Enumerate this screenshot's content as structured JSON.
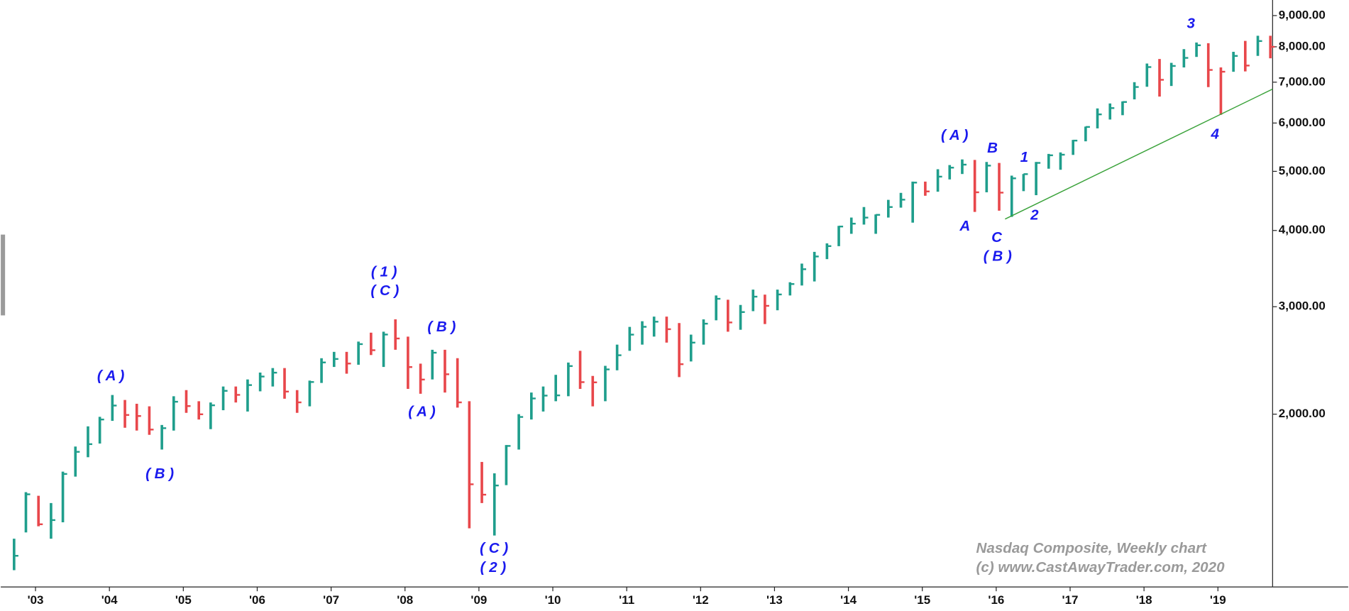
{
  "chart_data": {
    "type": "ohlc",
    "log_scale": true,
    "up_color": "#1f9e8c",
    "down_color": "#e8474b",
    "annotation_color": "#1a1aee",
    "trendline_color": "#3aa23a",
    "x": [
      2002.71,
      2002.87,
      2003.04,
      2003.21,
      2003.37,
      2003.54,
      2003.71,
      2003.87,
      2004.04,
      2004.21,
      2004.37,
      2004.54,
      2004.71,
      2004.87,
      2005.04,
      2005.21,
      2005.37,
      2005.54,
      2005.71,
      2005.87,
      2006.04,
      2006.21,
      2006.37,
      2006.54,
      2006.71,
      2006.87,
      2007.04,
      2007.21,
      2007.37,
      2007.54,
      2007.71,
      2007.87,
      2008.04,
      2008.21,
      2008.37,
      2008.54,
      2008.71,
      2008.87,
      2009.04,
      2009.21,
      2009.37,
      2009.54,
      2009.71,
      2009.87,
      2010.04,
      2010.21,
      2010.37,
      2010.54,
      2010.71,
      2010.87,
      2011.04,
      2011.21,
      2011.37,
      2011.54,
      2011.71,
      2011.87,
      2012.04,
      2012.21,
      2012.37,
      2012.54,
      2012.71,
      2012.87,
      2013.04,
      2013.21,
      2013.37,
      2013.54,
      2013.71,
      2013.87,
      2014.04,
      2014.21,
      2014.37,
      2014.54,
      2014.71,
      2014.87,
      2015.04,
      2015.21,
      2015.37,
      2015.54,
      2015.71,
      2015.87,
      2016.04,
      2016.21,
      2016.37,
      2016.54,
      2016.71,
      2016.87,
      2017.04,
      2017.21,
      2017.37,
      2017.54,
      2017.71,
      2017.87,
      2018.04,
      2018.21,
      2018.37,
      2018.54,
      2018.71,
      2018.87,
      2019.04,
      2019.21,
      2019.37,
      2019.54,
      2019.71
    ],
    "high": [
      1250,
      1490,
      1470,
      1430,
      1610,
      1770,
      1910,
      1980,
      2150,
      2110,
      2080,
      2060,
      1920,
      2140,
      2190,
      2100,
      2090,
      2220,
      2220,
      2280,
      2340,
      2380,
      2380,
      2190,
      2270,
      2470,
      2530,
      2530,
      2630,
      2720,
      2730,
      2860,
      2680,
      2420,
      2550,
      2550,
      2470,
      2100,
      1670,
      1600,
      1780,
      2000,
      2170,
      2220,
      2320,
      2430,
      2540,
      2310,
      2400,
      2600,
      2780,
      2840,
      2890,
      2890,
      2820,
      2700,
      2860,
      3130,
      3080,
      3020,
      3200,
      3140,
      3200,
      3290,
      3530,
      3690,
      3810,
      4070,
      4200,
      4370,
      4250,
      4490,
      4610,
      4810,
      4810,
      5040,
      5120,
      5230,
      5220,
      5180,
      5160,
      4920,
      4950,
      5180,
      5340,
      5370,
      5630,
      5920,
      6340,
      6460,
      6510,
      7000,
      7510,
      7640,
      7530,
      7930,
      8130,
      8110,
      7400,
      7850,
      8180,
      8340,
      8340
    ],
    "low": [
      1110,
      1280,
      1310,
      1250,
      1330,
      1580,
      1700,
      1790,
      1950,
      1900,
      1880,
      1850,
      1750,
      1880,
      2010,
      1960,
      1890,
      2030,
      2090,
      2020,
      2180,
      2220,
      2120,
      2010,
      2060,
      2250,
      2390,
      2330,
      2410,
      2500,
      2390,
      2550,
      2200,
      2160,
      2280,
      2170,
      2050,
      1300,
      1430,
      1265,
      1530,
      1750,
      1960,
      2020,
      2100,
      2140,
      2200,
      2060,
      2100,
      2360,
      2540,
      2600,
      2680,
      2620,
      2300,
      2440,
      2600,
      2850,
      2730,
      2750,
      2950,
      2810,
      2960,
      3130,
      3250,
      3300,
      3590,
      3770,
      3950,
      4090,
      3950,
      4200,
      4360,
      4120,
      4560,
      4630,
      4850,
      4950,
      4290,
      4620,
      4310,
      4210,
      4640,
      4570,
      5050,
      5030,
      5320,
      5600,
      5880,
      6080,
      6180,
      6560,
      6880,
      6630,
      6900,
      7400,
      7700,
      6870,
      6190,
      7280,
      7290,
      7730,
      7660
    ],
    "close": [
      1172,
      1478,
      1320,
      1341,
      1596,
      1735,
      1786,
      1960,
      2066,
      1994,
      1986,
      1887,
      1897,
      2096,
      2062,
      1999,
      2068,
      2184,
      2151,
      2232,
      2305,
      2339,
      2178,
      2091,
      2258,
      2431,
      2463,
      2421,
      2605,
      2546,
      2701,
      2661,
      2389,
      2279,
      2522,
      2325,
      2091,
      1535,
      1476,
      1528,
      1774,
      1979,
      2122,
      2145,
      2147,
      2398,
      2257,
      2255,
      2368,
      2498,
      2700,
      2781,
      2835,
      2756,
      2415,
      2620,
      2814,
      3091,
      2827,
      2940,
      3116,
      3010,
      3142,
      3268,
      3456,
      3626,
      3771,
      4060,
      4104,
      4199,
      4243,
      4370,
      4493,
      4792,
      4635,
      4901,
      5070,
      5128,
      4620,
      5109,
      4614,
      4870,
      4948,
      5162,
      5312,
      5324,
      5615,
      5912,
      6199,
      6348,
      6496,
      6874,
      7411,
      7063,
      7442,
      7672,
      8046,
      7331,
      7282,
      7729,
      7453,
      8175,
      7999
    ],
    "trendline": {
      "x": [
        2016.12,
        2019.74
      ],
      "values": [
        4176,
        6820
      ]
    },
    "xlim": [
      2002.53,
      2019.74
    ],
    "ylim": [
      1042,
      9545
    ],
    "xticks": [
      {
        "value": 2003,
        "label": "'03"
      },
      {
        "value": 2004,
        "label": "'04"
      },
      {
        "value": 2005,
        "label": "'05"
      },
      {
        "value": 2006,
        "label": "'06"
      },
      {
        "value": 2007,
        "label": "'07"
      },
      {
        "value": 2008,
        "label": "'08"
      },
      {
        "value": 2009,
        "label": "'09"
      },
      {
        "value": 2010,
        "label": "'10"
      },
      {
        "value": 2011,
        "label": "'11"
      },
      {
        "value": 2012,
        "label": "'12"
      },
      {
        "value": 2013,
        "label": "'13"
      },
      {
        "value": 2014,
        "label": "'14"
      },
      {
        "value": 2015,
        "label": "'15"
      },
      {
        "value": 2016,
        "label": "'16"
      },
      {
        "value": 2017,
        "label": "'17"
      },
      {
        "value": 2018,
        "label": "'18"
      },
      {
        "value": 2019,
        "label": "'19"
      }
    ],
    "yticks": [
      {
        "value": 2000,
        "label": "2,000.00"
      },
      {
        "value": 3000,
        "label": "3,000.00"
      },
      {
        "value": 4000,
        "label": "4,000.00"
      },
      {
        "value": 5000,
        "label": "5,000.00"
      },
      {
        "value": 6000,
        "label": "6,000.00"
      },
      {
        "value": 7000,
        "label": "7,000.00"
      },
      {
        "value": 8000,
        "label": "8,000.00"
      },
      {
        "value": 9000,
        "label": "9,000.00"
      }
    ],
    "annotations": [
      "( A )",
      "( B )",
      "( 1 )",
      "( C )",
      "( B )",
      "( A )",
      "( C )",
      "( 2 )",
      "( A )",
      "A",
      "B",
      "C",
      "( B )",
      "1",
      "2",
      "3",
      "4"
    ],
    "watermark": [
      "Nasdaq Composite, Weekly chart",
      "(c) www.CastAwayTrader.com, 2020"
    ]
  }
}
